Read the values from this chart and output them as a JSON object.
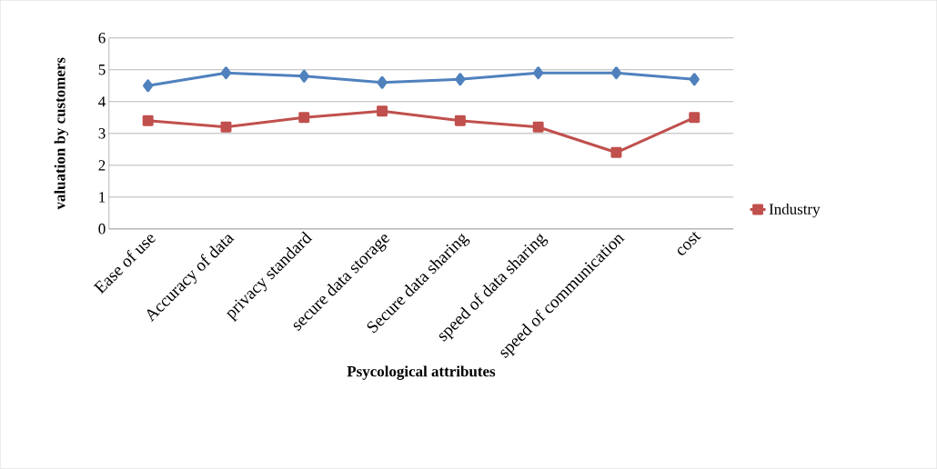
{
  "chart_data": {
    "type": "line",
    "categories": [
      "Ease of use",
      "Accuracy of data",
      "privacy standard",
      "secure data storage",
      "Secure data sharing",
      "speed of data sharing",
      "speed of communication",
      "cost"
    ],
    "series": [
      {
        "color": "#4f81bd",
        "marker": "diamond",
        "values": [
          4.5,
          4.9,
          4.8,
          4.6,
          4.7,
          4.9,
          4.9,
          4.7
        ]
      },
      {
        "name": "Industry",
        "color": "#c0504d",
        "marker": "square",
        "values": [
          3.4,
          3.2,
          3.5,
          3.7,
          3.4,
          3.2,
          2.4,
          3.5
        ]
      }
    ],
    "xlabel": "Psycological attributes",
    "ylabel": "valuation by customers",
    "ylim": [
      0,
      6
    ],
    "yticks": [
      0,
      1,
      2,
      3,
      4,
      5,
      6
    ],
    "grid": "y",
    "legend": "right"
  }
}
